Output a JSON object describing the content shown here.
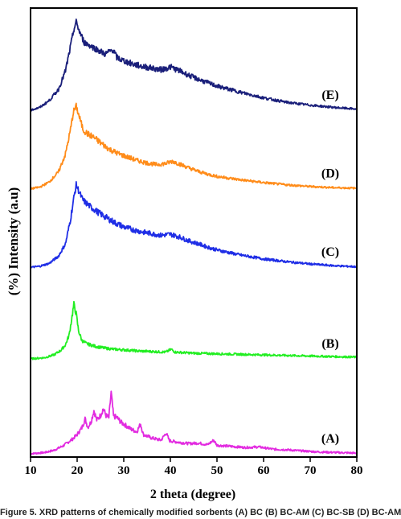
{
  "chart_data": {
    "type": "line",
    "xlabel": "2 theta (degree)",
    "ylabel": "(%) Intensity (a.u)",
    "xlim": [
      10,
      80
    ],
    "x_ticks": [
      10,
      20,
      30,
      40,
      50,
      60,
      70,
      80
    ],
    "y_ticks_shown": false,
    "grid": false,
    "series": [
      {
        "name": "(A)",
        "color": "#e22be0",
        "baseline": 0.6,
        "points": [
          [
            10,
            0.6
          ],
          [
            13,
            0.8
          ],
          [
            15,
            1.2
          ],
          [
            17,
            2.0
          ],
          [
            19,
            3.2
          ],
          [
            20,
            4.0
          ],
          [
            21,
            5.2
          ],
          [
            21.7,
            6.8
          ],
          [
            22.3,
            5.3
          ],
          [
            23,
            6.3
          ],
          [
            23.6,
            8.3
          ],
          [
            24.2,
            6.6
          ],
          [
            25,
            7.4
          ],
          [
            25.6,
            8.6
          ],
          [
            26.2,
            7.4
          ],
          [
            26.8,
            7.0
          ],
          [
            27.3,
            11.5
          ],
          [
            27.8,
            7.3
          ],
          [
            28.6,
            7.0
          ],
          [
            29.4,
            6.2
          ],
          [
            30.5,
            5.6
          ],
          [
            31.5,
            5.0
          ],
          [
            32.8,
            4.5
          ],
          [
            33.6,
            5.9
          ],
          [
            34.2,
            4.0
          ],
          [
            36,
            3.4
          ],
          [
            38,
            3.0
          ],
          [
            39.1,
            4.3
          ],
          [
            39.8,
            2.9
          ],
          [
            42,
            2.6
          ],
          [
            44,
            2.4
          ],
          [
            46,
            2.5
          ],
          [
            48,
            2.2
          ],
          [
            49.3,
            3.0
          ],
          [
            50,
            2.1
          ],
          [
            53,
            1.9
          ],
          [
            56,
            1.7
          ],
          [
            59,
            1.8
          ],
          [
            62,
            1.4
          ],
          [
            65,
            1.3
          ],
          [
            68,
            1.1
          ],
          [
            72,
            0.9
          ],
          [
            76,
            0.8
          ],
          [
            80,
            0.7
          ]
        ]
      },
      {
        "name": "(B)",
        "color": "#22ee22",
        "baseline": 17.5,
        "points": [
          [
            10,
            17.5
          ],
          [
            13,
            17.7
          ],
          [
            15,
            18.2
          ],
          [
            16.5,
            19.0
          ],
          [
            17.5,
            20.0
          ],
          [
            18.3,
            21.8
          ],
          [
            18.8,
            24.5
          ],
          [
            19.3,
            27.2
          ],
          [
            19.8,
            25.5
          ],
          [
            20.3,
            22.5
          ],
          [
            21,
            20.8
          ],
          [
            22,
            20.2
          ],
          [
            24,
            19.7
          ],
          [
            26,
            19.4
          ],
          [
            28,
            19.2
          ],
          [
            30,
            19.1
          ],
          [
            33,
            18.9
          ],
          [
            36,
            18.8
          ],
          [
            39,
            18.7
          ],
          [
            40.2,
            19.2
          ],
          [
            41,
            18.7
          ],
          [
            45,
            18.5
          ],
          [
            50,
            18.4
          ],
          [
            55,
            18.3
          ],
          [
            60,
            18.2
          ],
          [
            65,
            18.1
          ],
          [
            70,
            18.0
          ],
          [
            75,
            17.9
          ],
          [
            80,
            17.8
          ]
        ]
      },
      {
        "name": "(C)",
        "color": "#1f2ee6",
        "baseline": 33.8,
        "points": [
          [
            10,
            33.8
          ],
          [
            12,
            34.0
          ],
          [
            14,
            34.5
          ],
          [
            16,
            35.8
          ],
          [
            17.5,
            38.0
          ],
          [
            18.5,
            42.0
          ],
          [
            19.3,
            46.2
          ],
          [
            19.8,
            48.5
          ],
          [
            20.4,
            47.3
          ],
          [
            21.2,
            45.8
          ],
          [
            22,
            45.2
          ],
          [
            23,
            44.5
          ],
          [
            24.5,
            43.6
          ],
          [
            26,
            42.8
          ],
          [
            28,
            41.8
          ],
          [
            30,
            41.0
          ],
          [
            32,
            40.5
          ],
          [
            34,
            40.1
          ],
          [
            36,
            39.8
          ],
          [
            38,
            39.5
          ],
          [
            40,
            39.7
          ],
          [
            42,
            39.2
          ],
          [
            44,
            38.5
          ],
          [
            46,
            38.0
          ],
          [
            48,
            37.4
          ],
          [
            50,
            36.9
          ],
          [
            55,
            36.0
          ],
          [
            60,
            35.3
          ],
          [
            65,
            34.8
          ],
          [
            70,
            34.4
          ],
          [
            75,
            34.1
          ],
          [
            80,
            33.9
          ]
        ]
      },
      {
        "name": "(D)",
        "color": "#ff8c1a",
        "baseline": 47.8,
        "points": [
          [
            10,
            47.8
          ],
          [
            12,
            48.1
          ],
          [
            14,
            49.0
          ],
          [
            16,
            50.8
          ],
          [
            17.5,
            54.0
          ],
          [
            18.5,
            58.0
          ],
          [
            19.2,
            61.5
          ],
          [
            19.8,
            62.5
          ],
          [
            20.5,
            60.5
          ],
          [
            21.3,
            58.3
          ],
          [
            22.2,
            57.6
          ],
          [
            23.5,
            57.0
          ],
          [
            25,
            56.0
          ],
          [
            27,
            54.8
          ],
          [
            29,
            54.0
          ],
          [
            31,
            53.4
          ],
          [
            33,
            52.8
          ],
          [
            35,
            52.4
          ],
          [
            37,
            52.1
          ],
          [
            39,
            52.3
          ],
          [
            40.5,
            52.7
          ],
          [
            42,
            52.2
          ],
          [
            44,
            51.5
          ],
          [
            46,
            50.9
          ],
          [
            48,
            50.4
          ],
          [
            50,
            50.0
          ],
          [
            55,
            49.4
          ],
          [
            60,
            48.9
          ],
          [
            65,
            48.5
          ],
          [
            70,
            48.2
          ],
          [
            75,
            48.0
          ],
          [
            80,
            47.9
          ]
        ]
      },
      {
        "name": "(E)",
        "color": "#1a1f7a",
        "baseline": 61.8,
        "points": [
          [
            10,
            61.8
          ],
          [
            12,
            62.3
          ],
          [
            14,
            63.5
          ],
          [
            16,
            65.5
          ],
          [
            17.5,
            68.8
          ],
          [
            18.5,
            72.8
          ],
          [
            19.3,
            76.2
          ],
          [
            19.8,
            77.5
          ],
          [
            20.5,
            75.8
          ],
          [
            21.5,
            73.9
          ],
          [
            23,
            73.2
          ],
          [
            24.5,
            72.5
          ],
          [
            26,
            71.8
          ],
          [
            27.7,
            72.6
          ],
          [
            28.5,
            71.2
          ],
          [
            30,
            70.6
          ],
          [
            32,
            70.0
          ],
          [
            34,
            69.6
          ],
          [
            36,
            69.3
          ],
          [
            38,
            69.0
          ],
          [
            40,
            69.5
          ],
          [
            42,
            68.8
          ],
          [
            44,
            68.0
          ],
          [
            46,
            67.3
          ],
          [
            48,
            66.7
          ],
          [
            50,
            66.1
          ],
          [
            55,
            65.0
          ],
          [
            60,
            64.0
          ],
          [
            65,
            63.2
          ],
          [
            70,
            62.7
          ],
          [
            75,
            62.3
          ],
          [
            80,
            62.0
          ]
        ]
      }
    ]
  },
  "caption": "Figure 5. XRD patterns of chemically modified sorbents (A) BC (B) BC-AM (C) BC-SB (D) BC-AM"
}
